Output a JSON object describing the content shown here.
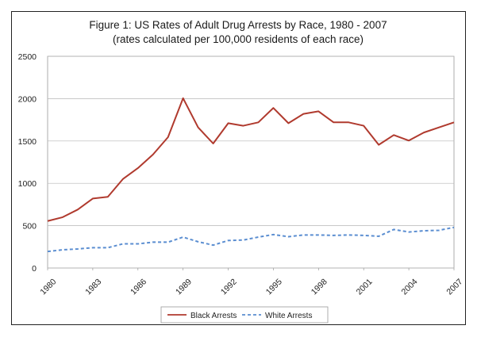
{
  "chart_data": {
    "type": "line",
    "title": "Figure 1: US Rates of Adult Drug Arrests by Race, 1980 - 2007",
    "subtitle": "(rates calculated per 100,000 residents of each race)",
    "xlabel": "",
    "ylabel": "",
    "ylim": [
      0,
      2500
    ],
    "xlim": [
      1980,
      2007
    ],
    "yticks": [
      "0",
      "500",
      "1000",
      "1500",
      "2000",
      "2500"
    ],
    "xticks": [
      "1980",
      "1983",
      "1986",
      "1989",
      "1992",
      "1995",
      "1998",
      "2001",
      "2004",
      "2007"
    ],
    "grid": "horizontal",
    "legend_position": "bottom",
    "x": [
      1980,
      1981,
      1982,
      1983,
      1984,
      1985,
      1986,
      1987,
      1988,
      1989,
      1990,
      1991,
      1992,
      1993,
      1994,
      1995,
      1996,
      1997,
      1998,
      1999,
      2000,
      2001,
      2002,
      2003,
      2004,
      2005,
      2006,
      2007
    ],
    "series": [
      {
        "name": "Black Arrests",
        "color": "#b03a2e",
        "style": "solid",
        "values": [
          555,
          600,
          690,
          820,
          840,
          1050,
          1180,
          1340,
          1545,
          2005,
          1660,
          1470,
          1710,
          1680,
          1720,
          1890,
          1710,
          1820,
          1850,
          1720,
          1720,
          1680,
          1455,
          1570,
          1505,
          1600,
          1660,
          1720
        ]
      },
      {
        "name": "White Arrests",
        "color": "#5b8ed1",
        "style": "dashed",
        "values": [
          195,
          215,
          225,
          240,
          240,
          285,
          285,
          305,
          305,
          365,
          310,
          270,
          325,
          330,
          365,
          395,
          370,
          390,
          390,
          385,
          390,
          385,
          375,
          455,
          425,
          440,
          445,
          480
        ]
      }
    ]
  }
}
